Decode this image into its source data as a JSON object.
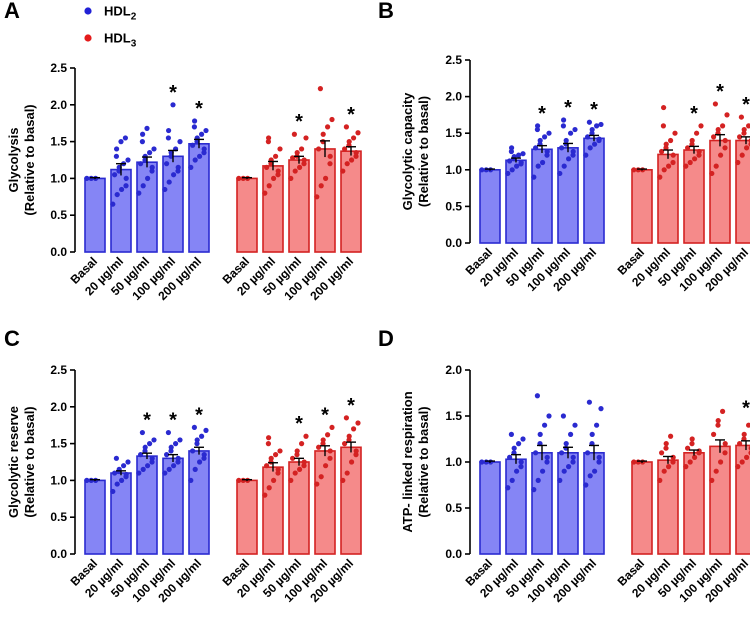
{
  "legend": {
    "items": [
      {
        "label": "HDL",
        "sub": "2",
        "color": "#2121d6"
      },
      {
        "label": "HDL",
        "sub": "3",
        "color": "#e41b1b"
      }
    ]
  },
  "colors": {
    "hdl2_fill": "#8585f5",
    "hdl2_stroke": "#2a2ad0",
    "hdl3_fill": "#f58a8a",
    "hdl3_stroke": "#d42222"
  },
  "chart_data": [
    {
      "panel": "A",
      "type": "bar",
      "ylabel_lines": [
        "Glycolysis",
        "(Relative to basal)"
      ],
      "ylim": [
        0,
        2.5
      ],
      "yticks": [
        "0.0",
        "0.5",
        "1.0",
        "1.5",
        "2.0",
        "2.5"
      ],
      "categories": [
        "Basal",
        "20 µg/ml",
        "50 µg/ml",
        "100 µg/ml",
        "200 µg/ml"
      ],
      "series": [
        {
          "name": "HDL2",
          "values": [
            1.0,
            1.12,
            1.22,
            1.3,
            1.47
          ],
          "sem": [
            0.01,
            0.08,
            0.07,
            0.08,
            0.06
          ],
          "significant": [
            false,
            false,
            false,
            true,
            true
          ],
          "points": [
            [
              1.0,
              1.0,
              1.0
            ],
            [
              0.65,
              0.78,
              0.85,
              0.9,
              1.0,
              1.05,
              1.1,
              1.15,
              1.2,
              1.25,
              1.3,
              1.4,
              1.5,
              1.55
            ],
            [
              0.8,
              0.9,
              1.0,
              1.1,
              1.15,
              1.2,
              1.25,
              1.3,
              1.35,
              1.4,
              1.5,
              1.6,
              1.68
            ],
            [
              0.85,
              0.95,
              1.05,
              1.1,
              1.15,
              1.2,
              1.3,
              1.35,
              1.4,
              1.5,
              1.55,
              1.65,
              2.0
            ],
            [
              1.15,
              1.25,
              1.3,
              1.35,
              1.4,
              1.45,
              1.5,
              1.55,
              1.6,
              1.65,
              1.7,
              1.78
            ]
          ]
        },
        {
          "name": "HDL3",
          "values": [
            1.0,
            1.17,
            1.25,
            1.4,
            1.37
          ],
          "sem": [
            0.01,
            0.06,
            0.05,
            0.11,
            0.06
          ],
          "significant": [
            false,
            false,
            true,
            false,
            true
          ],
          "points": [
            [
              1.0,
              1.0,
              1.0
            ],
            [
              0.8,
              0.9,
              1.0,
              1.05,
              1.1,
              1.15,
              1.2,
              1.25,
              1.3,
              1.4,
              1.5,
              1.55
            ],
            [
              1.0,
              1.1,
              1.15,
              1.2,
              1.25,
              1.28,
              1.3,
              1.35,
              1.4,
              1.55,
              1.6
            ],
            [
              0.75,
              0.9,
              1.0,
              1.2,
              1.3,
              1.4,
              1.5,
              1.6,
              1.7,
              1.8,
              2.22
            ],
            [
              1.1,
              1.2,
              1.25,
              1.3,
              1.35,
              1.4,
              1.45,
              1.5,
              1.55,
              1.62,
              1.7
            ]
          ]
        }
      ]
    },
    {
      "panel": "B",
      "type": "bar",
      "ylabel_lines": [
        "Glycolytic capacity",
        "(Relative to basal)"
      ],
      "ylim": [
        0,
        2.5
      ],
      "yticks": [
        "0.0",
        "0.5",
        "1.0",
        "1.5",
        "2.0",
        "2.5"
      ],
      "categories": [
        "Basal",
        "20 µg/ml",
        "50 µg/ml",
        "100 µg/ml",
        "200 µg/ml"
      ],
      "series": [
        {
          "name": "HDL2",
          "values": [
            1.0,
            1.13,
            1.28,
            1.3,
            1.43
          ],
          "sem": [
            0.01,
            0.03,
            0.05,
            0.06,
            0.04
          ],
          "significant": [
            false,
            false,
            true,
            true,
            true
          ],
          "points": [
            [
              1.0,
              1.0,
              1.0
            ],
            [
              0.95,
              1.0,
              1.05,
              1.08,
              1.1,
              1.12,
              1.15,
              1.18,
              1.2,
              1.22,
              1.25,
              1.3
            ],
            [
              0.9,
              1.05,
              1.1,
              1.2,
              1.25,
              1.3,
              1.35,
              1.4,
              1.45,
              1.5,
              1.55,
              1.6
            ],
            [
              0.95,
              1.05,
              1.15,
              1.2,
              1.25,
              1.3,
              1.35,
              1.4,
              1.5,
              1.55,
              1.6,
              1.68
            ],
            [
              1.2,
              1.3,
              1.35,
              1.4,
              1.42,
              1.45,
              1.5,
              1.55,
              1.6,
              1.62,
              1.65
            ]
          ]
        },
        {
          "name": "HDL3",
          "values": [
            1.0,
            1.21,
            1.27,
            1.4,
            1.4
          ],
          "sem": [
            0.01,
            0.06,
            0.05,
            0.08,
            0.05
          ],
          "significant": [
            false,
            false,
            true,
            true,
            true
          ],
          "points": [
            [
              1.0,
              1.0,
              1.0
            ],
            [
              0.9,
              1.0,
              1.05,
              1.1,
              1.2,
              1.25,
              1.3,
              1.35,
              1.4,
              1.5,
              1.6,
              1.85
            ],
            [
              1.05,
              1.1,
              1.15,
              1.2,
              1.25,
              1.3,
              1.35,
              1.4,
              1.5,
              1.6
            ],
            [
              0.95,
              1.05,
              1.2,
              1.3,
              1.4,
              1.45,
              1.5,
              1.55,
              1.6,
              1.75,
              1.9
            ],
            [
              1.1,
              1.2,
              1.3,
              1.35,
              1.4,
              1.45,
              1.5,
              1.55,
              1.6,
              1.65,
              1.72
            ]
          ]
        }
      ]
    },
    {
      "panel": "C",
      "type": "bar",
      "ylabel_lines": [
        "Glycolytic reserve",
        "(Relative to basal)"
      ],
      "ylim": [
        0,
        2.5
      ],
      "yticks": [
        "0.0",
        "0.5",
        "1.0",
        "1.5",
        "2.0",
        "2.5"
      ],
      "categories": [
        "Basal",
        "20 µg/ml",
        "50 µg/ml",
        "100 µg/ml",
        "200 µg/ml"
      ],
      "series": [
        {
          "name": "HDL2",
          "values": [
            1.0,
            1.1,
            1.33,
            1.3,
            1.4
          ],
          "sem": [
            0.01,
            0.03,
            0.04,
            0.05,
            0.05
          ],
          "significant": [
            false,
            false,
            true,
            true,
            true
          ],
          "points": [
            [
              1.0,
              1.0,
              1.0
            ],
            [
              0.85,
              0.95,
              1.0,
              1.05,
              1.08,
              1.1,
              1.12,
              1.15,
              1.2,
              1.25,
              1.3
            ],
            [
              1.1,
              1.15,
              1.2,
              1.25,
              1.3,
              1.35,
              1.4,
              1.45,
              1.5,
              1.55,
              1.65
            ],
            [
              1.1,
              1.15,
              1.2,
              1.25,
              1.3,
              1.35,
              1.4,
              1.45,
              1.5,
              1.55,
              1.65
            ],
            [
              1.0,
              1.15,
              1.25,
              1.3,
              1.35,
              1.4,
              1.5,
              1.55,
              1.6,
              1.68,
              1.72
            ]
          ]
        },
        {
          "name": "HDL3",
          "values": [
            1.0,
            1.18,
            1.25,
            1.4,
            1.45
          ],
          "sem": [
            0.01,
            0.06,
            0.05,
            0.07,
            0.07
          ],
          "significant": [
            false,
            false,
            true,
            true,
            true
          ],
          "points": [
            [
              1.0,
              1.0,
              1.0
            ],
            [
              0.8,
              0.9,
              1.0,
              1.1,
              1.15,
              1.2,
              1.25,
              1.3,
              1.35,
              1.4,
              1.5,
              1.58
            ],
            [
              1.0,
              1.1,
              1.15,
              1.2,
              1.25,
              1.3,
              1.35,
              1.4,
              1.5,
              1.6
            ],
            [
              0.95,
              1.05,
              1.2,
              1.3,
              1.4,
              1.45,
              1.5,
              1.55,
              1.62,
              1.72
            ],
            [
              1.0,
              1.1,
              1.25,
              1.35,
              1.4,
              1.5,
              1.55,
              1.6,
              1.7,
              1.78,
              1.85
            ]
          ]
        }
      ]
    },
    {
      "panel": "D",
      "type": "bar",
      "ylabel_lines": [
        "ATP- linked respiration",
        "(Relative to basal)"
      ],
      "ylim": [
        0,
        2.0
      ],
      "yticks": [
        "0.0",
        "0.5",
        "1.0",
        "1.5",
        "2.0"
      ],
      "categories": [
        "Basal",
        "20 µg/ml",
        "50 µg/ml",
        "100 µg/ml",
        "200 µg/ml"
      ],
      "series": [
        {
          "name": "HDL2",
          "values": [
            1.0,
            1.03,
            1.1,
            1.1,
            1.1
          ],
          "sem": [
            0.01,
            0.05,
            0.08,
            0.06,
            0.08
          ],
          "significant": [
            false,
            false,
            false,
            false,
            false
          ],
          "points": [
            [
              1.0,
              1.0,
              1.0
            ],
            [
              0.72,
              0.8,
              0.9,
              0.95,
              1.0,
              1.05,
              1.1,
              1.15,
              1.2,
              1.25,
              1.3
            ],
            [
              0.7,
              0.8,
              0.9,
              1.0,
              1.05,
              1.1,
              1.2,
              1.3,
              1.4,
              1.5,
              1.72
            ],
            [
              0.8,
              0.9,
              0.95,
              1.0,
              1.05,
              1.1,
              1.15,
              1.2,
              1.3,
              1.4,
              1.5
            ],
            [
              0.75,
              0.85,
              0.9,
              1.0,
              1.05,
              1.1,
              1.2,
              1.3,
              1.4,
              1.58,
              1.65
            ]
          ]
        },
        {
          "name": "HDL3",
          "values": [
            1.0,
            1.02,
            1.1,
            1.17,
            1.18
          ],
          "sem": [
            0.01,
            0.04,
            0.03,
            0.07,
            0.05
          ],
          "significant": [
            false,
            false,
            false,
            false,
            true
          ],
          "points": [
            [
              1.0,
              1.0,
              1.0
            ],
            [
              0.8,
              0.9,
              0.95,
              1.0,
              1.05,
              1.1,
              1.15,
              1.2,
              1.28
            ],
            [
              0.95,
              1.0,
              1.05,
              1.1,
              1.12,
              1.15,
              1.2,
              1.25
            ],
            [
              0.8,
              0.9,
              1.0,
              1.1,
              1.2,
              1.3,
              1.4,
              1.45,
              1.55
            ],
            [
              0.95,
              1.0,
              1.05,
              1.1,
              1.15,
              1.2,
              1.25,
              1.3,
              1.4,
              1.45
            ]
          ]
        }
      ]
    }
  ]
}
